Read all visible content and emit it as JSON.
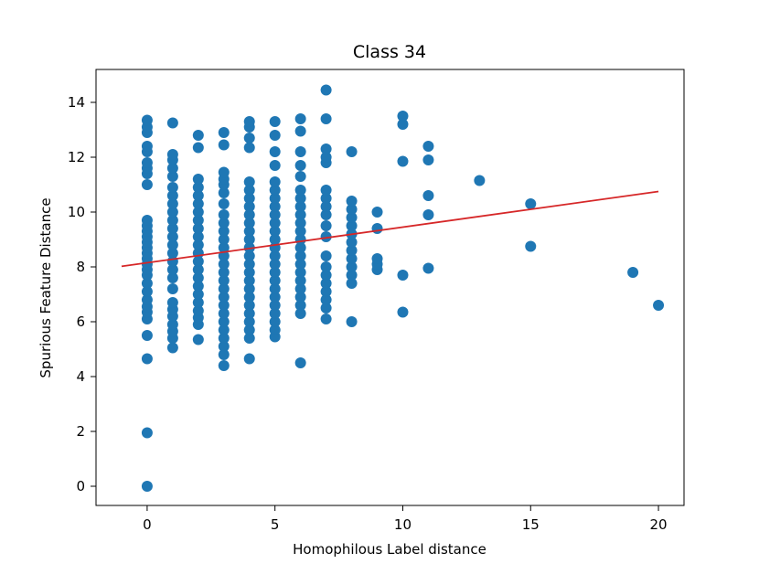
{
  "chart_data": {
    "type": "scatter",
    "title": "Class 34",
    "xlabel": "Homophilous Label distance",
    "ylabel": "Spurious Feature Distance",
    "xlim": [
      -2,
      21
    ],
    "ylim": [
      -0.7,
      15.2
    ],
    "xticks": [
      0,
      5,
      10,
      15,
      20
    ],
    "yticks": [
      0,
      2,
      4,
      6,
      8,
      10,
      12,
      14
    ],
    "grid": false,
    "legend": "none",
    "colors": {
      "points": "#1f77b4",
      "fit_line": "#d62728"
    },
    "points": [
      {
        "x": 0,
        "ys": [
          0,
          1.95,
          4.65,
          5.5,
          6.1,
          6.35,
          6.55,
          6.8,
          7.1,
          7.4,
          7.7,
          7.9,
          8.1,
          8.3,
          8.5,
          8.7,
          8.9,
          9.1,
          9.3,
          9.5,
          9.7,
          11,
          11.4,
          11.6,
          11.8,
          12.2,
          12.4,
          12.9,
          13.1,
          13.35
        ]
      },
      {
        "x": 1,
        "ys": [
          5.05,
          5.4,
          5.65,
          5.9,
          6.2,
          6.45,
          6.7,
          7.2,
          7.6,
          7.9,
          8.2,
          8.5,
          8.8,
          9.1,
          9.4,
          9.7,
          10,
          10.3,
          10.6,
          10.9,
          11.3,
          11.6,
          11.9,
          12.1,
          13.25
        ]
      },
      {
        "x": 2,
        "ys": [
          5.35,
          5.9,
          6.15,
          6.4,
          6.7,
          7,
          7.3,
          7.6,
          7.9,
          8.2,
          8.5,
          8.8,
          9.1,
          9.4,
          9.7,
          10,
          10.3,
          10.6,
          10.9,
          11.2,
          12.35,
          12.8
        ]
      },
      {
        "x": 3,
        "ys": [
          4.4,
          4.8,
          5.1,
          5.4,
          5.7,
          6,
          6.3,
          6.6,
          6.9,
          7.2,
          7.5,
          7.8,
          8.1,
          8.4,
          8.7,
          9,
          9.3,
          9.6,
          9.9,
          10.3,
          10.7,
          11,
          11.2,
          11.45,
          12.45,
          12.9
        ]
      },
      {
        "x": 4,
        "ys": [
          4.65,
          5.4,
          5.7,
          6,
          6.3,
          6.6,
          6.9,
          7.2,
          7.5,
          7.8,
          8.1,
          8.4,
          8.7,
          9,
          9.3,
          9.6,
          9.9,
          10.2,
          10.5,
          10.8,
          11.1,
          12.35,
          12.7,
          13.1,
          13.3
        ]
      },
      {
        "x": 5,
        "ys": [
          5.45,
          5.7,
          6,
          6.3,
          6.6,
          6.9,
          7.2,
          7.5,
          7.8,
          8.1,
          8.4,
          8.7,
          9,
          9.3,
          9.6,
          9.9,
          10.2,
          10.5,
          10.8,
          11.1,
          11.7,
          12.2,
          12.8,
          13.3
        ]
      },
      {
        "x": 6,
        "ys": [
          4.5,
          6.3,
          6.6,
          6.9,
          7.2,
          7.5,
          7.8,
          8.1,
          8.4,
          8.7,
          9,
          9.3,
          9.6,
          9.9,
          10.2,
          10.5,
          10.8,
          11.3,
          11.7,
          12.2,
          12.95,
          13.4
        ]
      },
      {
        "x": 7,
        "ys": [
          6.1,
          6.5,
          6.8,
          7.1,
          7.4,
          7.7,
          8,
          8.4,
          9.1,
          9.5,
          9.9,
          10.2,
          10.5,
          10.8,
          11.8,
          12,
          12.3,
          13.4,
          14.45
        ]
      },
      {
        "x": 8,
        "ys": [
          6,
          7.4,
          7.7,
          8,
          8.3,
          8.6,
          8.9,
          9.2,
          9.5,
          9.8,
          10.1,
          10.4,
          12.2
        ]
      },
      {
        "x": 9,
        "ys": [
          7.9,
          8.1,
          8.3,
          9.4,
          10
        ]
      },
      {
        "x": 10,
        "ys": [
          6.35,
          7.7,
          11.85,
          13.2,
          13.5
        ]
      },
      {
        "x": 11,
        "ys": [
          7.95,
          9.9,
          10.6,
          11.9,
          12.4
        ]
      },
      {
        "x": 13,
        "ys": [
          11.15
        ]
      },
      {
        "x": 15,
        "ys": [
          8.75,
          10.3
        ]
      },
      {
        "x": 19,
        "ys": [
          7.8
        ]
      },
      {
        "x": 20,
        "ys": [
          6.6
        ]
      }
    ],
    "fit_line": {
      "x": [
        -1,
        20
      ],
      "y": [
        8.02,
        10.75
      ]
    }
  }
}
